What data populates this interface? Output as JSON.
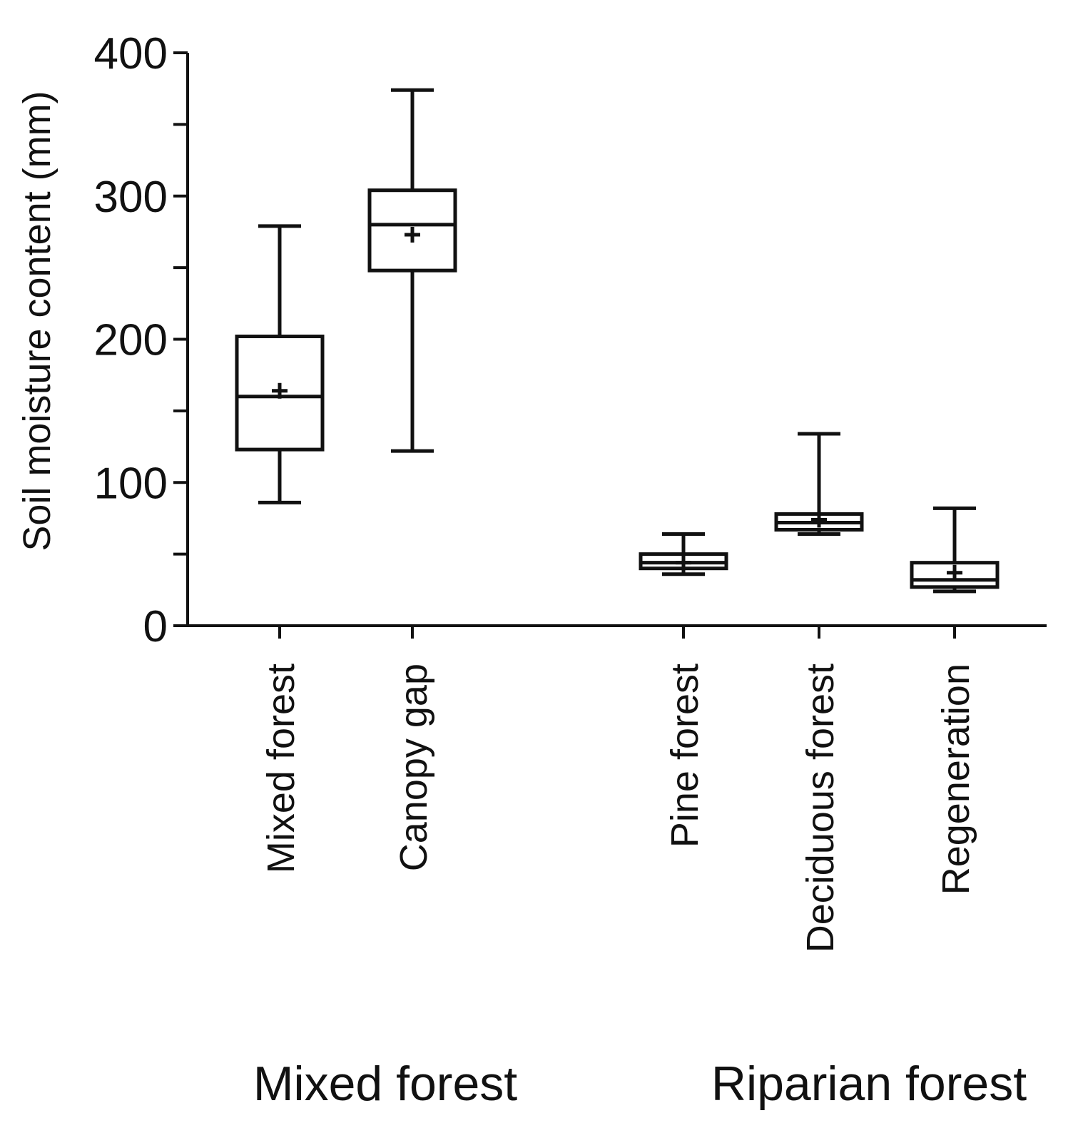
{
  "chart_data": {
    "type": "box",
    "title": "",
    "xlabel": "",
    "ylabel": "Soil moisture content (mm)",
    "ylim": [
      0,
      400
    ],
    "yticks": [
      0,
      100,
      200,
      300,
      400
    ],
    "grid": false,
    "legend": "none",
    "groups": [
      {
        "label": "Mixed forest",
        "categories": [
          "Mixed forest",
          "Canopy gap"
        ]
      },
      {
        "label": "Riparian forest",
        "categories": [
          "Pine forest",
          "Deciduous forest",
          "Regeneration"
        ]
      }
    ],
    "boxes": [
      {
        "category": "Mixed forest",
        "min": 86,
        "q1": 123,
        "median": 160,
        "q3": 202,
        "max": 279,
        "mean": 164
      },
      {
        "category": "Canopy gap",
        "min": 122,
        "q1": 248,
        "median": 280,
        "q3": 304,
        "max": 374,
        "mean": 273
      },
      {
        "category": "Pine forest",
        "min": 36,
        "q1": 40,
        "median": 44,
        "q3": 50,
        "max": 64,
        "mean": 44
      },
      {
        "category": "Deciduous forest",
        "min": 64,
        "q1": 67,
        "median": 72,
        "q3": 78,
        "max": 134,
        "mean": 74
      },
      {
        "category": "Regeneration",
        "min": 24,
        "q1": 27,
        "median": 32,
        "q3": 44,
        "max": 82,
        "mean": 37
      }
    ],
    "colors": {
      "stroke": "#111111",
      "fill": "#ffffff"
    }
  }
}
